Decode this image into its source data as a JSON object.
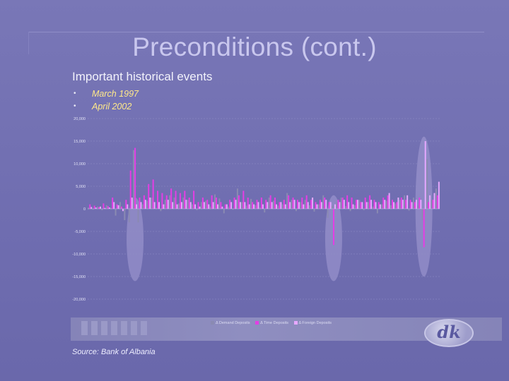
{
  "slide": {
    "title": "Preconditions (cont.)",
    "subtitle": "Important historical events",
    "events": [
      "March 1997",
      "April 2002"
    ],
    "bullet_glyph": "•",
    "source": "Source: Bank of Albania",
    "logo_text": "dk"
  },
  "colors": {
    "demand": "#8a8ab2",
    "time": "#e43ee4",
    "foreign": "#e6a8ff",
    "highlight": "#a59fd6",
    "axis_text": "#e0e0f4",
    "gridline": "#8f8dc6"
  },
  "chart_data": {
    "type": "bar",
    "title": "",
    "ylim": [
      -20000,
      20000
    ],
    "yticks": [
      20000,
      15000,
      10000,
      5000,
      0,
      -5000,
      -10000,
      -15000,
      -20000
    ],
    "ytick_labels": [
      "20,000",
      "15,000",
      "10,000",
      "5,000",
      "0",
      "-5,000",
      "-10,000",
      "-15,000",
      "-20,000"
    ],
    "grid": true,
    "legend_position": "bottom",
    "highlight_periods": [
      "March 1997",
      "April 2002"
    ],
    "series": [
      {
        "name": "Δ Demand Deposits",
        "values": [
          300,
          -200,
          500,
          -300,
          800,
          200,
          -1500,
          1500,
          -2500,
          -3000,
          13000,
          -3000,
          1000,
          1800,
          2500,
          200,
          -500,
          2000,
          3000,
          2500,
          1200,
          2500,
          2000,
          1000,
          -300,
          1500,
          1800,
          500,
          3200,
          2300,
          -1000,
          500,
          -200,
          4500,
          1500,
          700,
          2200,
          800,
          300,
          -800,
          2500,
          1800,
          700,
          1000,
          3500,
          2000,
          -500,
          1500,
          2000,
          800,
          -600,
          1000,
          3000,
          -2000,
          700,
          1500,
          2500,
          600,
          -500,
          800,
          2000,
          -300,
          1500,
          500,
          -1000,
          1000,
          1800,
          800,
          1200,
          2000,
          3000,
          -400,
          2500,
          700,
          -2500,
          11000,
          2000,
          4500
        ]
      },
      {
        "name": "Δ Time Deposits",
        "values": [
          1000,
          700,
          400,
          1200,
          600,
          2500,
          1000,
          500,
          2000,
          8500,
          13500,
          2500,
          3000,
          5500,
          6500,
          4000,
          3500,
          3000,
          4500,
          4000,
          3500,
          4000,
          2500,
          4000,
          1500,
          2500,
          2000,
          3000,
          2500,
          1500,
          1000,
          2000,
          2500,
          3000,
          4000,
          2500,
          1500,
          2000,
          2500,
          2000,
          3000,
          2500,
          1500,
          2000,
          3000,
          2500,
          2000,
          2500,
          3000,
          2000,
          1500,
          2000,
          2500,
          1500,
          -8000,
          2000,
          2500,
          3000,
          2500,
          2000,
          1500,
          2500,
          3000,
          2000,
          1500,
          2500,
          3000,
          2000,
          1500,
          2500,
          2000,
          2000,
          1500,
          2500,
          -8500,
          1500,
          2000,
          3000
        ]
      },
      {
        "name": "Δ Foreign Deposits",
        "values": [
          400,
          300,
          500,
          200,
          300,
          1500,
          800,
          -500,
          1000,
          2500,
          1000,
          1500,
          2000,
          2500,
          1500,
          1500,
          1000,
          2000,
          1500,
          1000,
          1500,
          2000,
          1500,
          1000,
          500,
          1500,
          1000,
          1500,
          1000,
          500,
          1000,
          1500,
          2000,
          1500,
          1500,
          1000,
          1000,
          1500,
          1000,
          1500,
          1500,
          1000,
          1500,
          1000,
          1500,
          2000,
          1500,
          1000,
          1500,
          2500,
          1000,
          1500,
          2000,
          1500,
          1000,
          1500,
          2000,
          1500,
          1000,
          2000,
          1500,
          1500,
          2000,
          1500,
          1000,
          2000,
          3500,
          1500,
          2500,
          2000,
          3000,
          1500,
          2000,
          2000,
          15000,
          3000,
          3500,
          6000
        ]
      }
    ],
    "x_count": 78
  }
}
